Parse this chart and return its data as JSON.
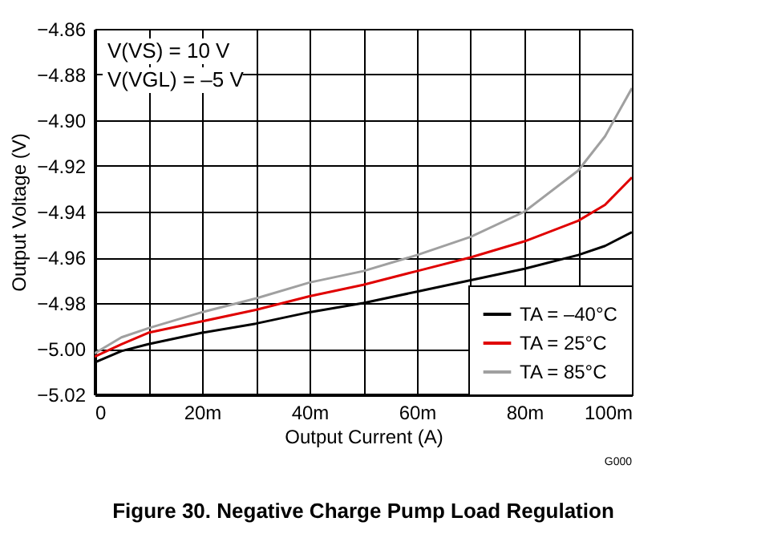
{
  "chart_data": {
    "type": "line",
    "title": "Figure 30. Negative Charge Pump Load Regulation",
    "xlabel": "Output Current (A)",
    "ylabel": "Output Voltage (V)",
    "x": [
      0,
      5,
      10,
      20,
      30,
      40,
      50,
      60,
      70,
      80,
      90,
      95,
      100
    ],
    "series": [
      {
        "name": "TA = –40°C",
        "color": "#000000",
        "values": [
          -5.006,
          -5.001,
          -4.998,
          -4.993,
          -4.989,
          -4.984,
          -4.98,
          -4.975,
          -4.97,
          -4.965,
          -4.959,
          -4.955,
          -4.949
        ]
      },
      {
        "name": "TA = 25°C",
        "color": "#e00000",
        "values": [
          -5.0035,
          -4.998,
          -4.993,
          -4.988,
          -4.983,
          -4.977,
          -4.972,
          -4.966,
          -4.96,
          -4.953,
          -4.944,
          -4.937,
          -4.925
        ]
      },
      {
        "name": "TA = 85°C",
        "color": "#a0a0a0",
        "values": [
          -5.002,
          -4.995,
          -4.991,
          -4.984,
          -4.978,
          -4.971,
          -4.966,
          -4.959,
          -4.951,
          -4.94,
          -4.922,
          -4.907,
          -4.886
        ]
      }
    ],
    "xlim": [
      0,
      100
    ],
    "ylim": [
      -5.02,
      -4.86
    ],
    "xticks": [
      {
        "value": 0,
        "label": "0"
      },
      {
        "value": 10,
        "label": null
      },
      {
        "value": 20,
        "label": "20m"
      },
      {
        "value": 30,
        "label": null
      },
      {
        "value": 40,
        "label": "40m"
      },
      {
        "value": 50,
        "label": null
      },
      {
        "value": 60,
        "label": "60m"
      },
      {
        "value": 70,
        "label": null
      },
      {
        "value": 80,
        "label": "80m"
      },
      {
        "value": 90,
        "label": null
      },
      {
        "value": 100,
        "label": "100m"
      }
    ],
    "yticks": [
      -5.02,
      {
        "value": -5.0,
        "label": "−5.00"
      },
      -4.98,
      -4.96,
      -4.94,
      -4.92,
      {
        "value": -4.9,
        "label": "−4.90"
      },
      -4.88,
      -4.86
    ],
    "grid": true,
    "legend": "bottom right",
    "marker": "none",
    "line_style": "solid",
    "annotations": [
      "V(VS) = 10 V",
      "V(VGL) = –5 V",
      "G000"
    ]
  }
}
